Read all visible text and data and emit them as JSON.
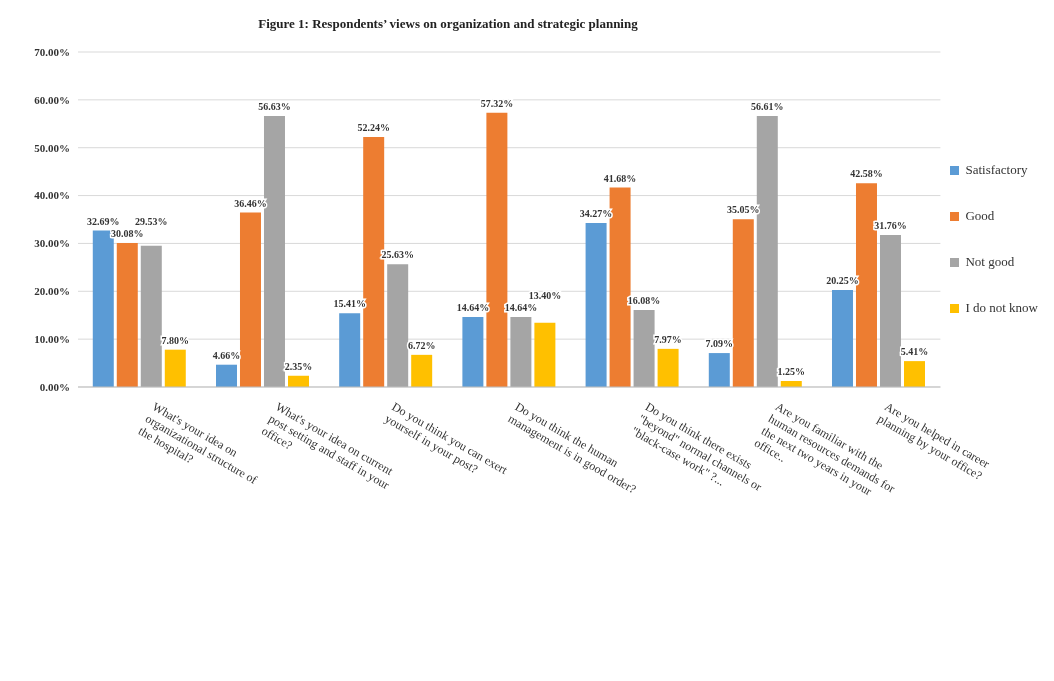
{
  "chart_data": {
    "type": "bar",
    "title": "Figure 1: Respondents’ views on organization and strategic planning",
    "categories": [
      "What's your idea on organizational structure of the hospital?",
      "What's your idea on current post setting and staff in your office?",
      "Do you think you can exert yourself in your post?",
      "Do you think the human management is in good order?",
      "Do you think there exists \"beyond\" normal channels or \"black-case work\" ?...",
      "Are you familiar with the human resources demands for the next two years in your office..",
      "Are you helped in career planning by your office?"
    ],
    "series": [
      {
        "name": "Satisfactory",
        "color": "#5b9bd5",
        "values": [
          32.69,
          4.66,
          15.41,
          14.64,
          34.27,
          7.09,
          20.25
        ],
        "value_labels": [
          "32.69%",
          "4.66%",
          "15.41%",
          "14.64%",
          "34.27%",
          "7.09%",
          "20.25%"
        ]
      },
      {
        "name": "Good",
        "color": "#ed7d31",
        "values": [
          30.08,
          36.46,
          52.24,
          57.32,
          41.68,
          35.05,
          42.58
        ],
        "value_labels": [
          "30.08%",
          "36.46%",
          "52.24%",
          "57.32%",
          "41.68%",
          "35.05%",
          "42.58%"
        ]
      },
      {
        "name": "Not good",
        "color": "#a5a5a5",
        "values": [
          29.53,
          56.63,
          25.63,
          14.64,
          16.08,
          56.61,
          31.76
        ],
        "value_labels": [
          "29.53%",
          "56.63%",
          "25.63%",
          "14.64%",
          "16.08%",
          "56.61%",
          "31.76%"
        ]
      },
      {
        "name": "I do not know",
        "color": "#ffc000",
        "values": [
          7.8,
          2.35,
          6.72,
          13.4,
          7.97,
          1.25,
          5.41
        ],
        "value_labels": [
          "7.80%",
          "2.35%",
          "6.72%",
          "13.40%",
          "7.97%",
          "1.25%",
          "5.41%"
        ]
      }
    ],
    "ylim": [
      0,
      70
    ],
    "yticks": [
      {
        "value": 0,
        "label": "0.00%"
      },
      {
        "value": 10,
        "label": "10.00%"
      },
      {
        "value": 20,
        "label": "20.00%"
      },
      {
        "value": 30,
        "label": "30.00%"
      },
      {
        "value": 40,
        "label": "40.00%"
      },
      {
        "value": 50,
        "label": "50.00%"
      },
      {
        "value": 60,
        "label": "60.00%"
      },
      {
        "value": 70,
        "label": "70.00%"
      }
    ],
    "grid": "y",
    "legend": "right"
  }
}
